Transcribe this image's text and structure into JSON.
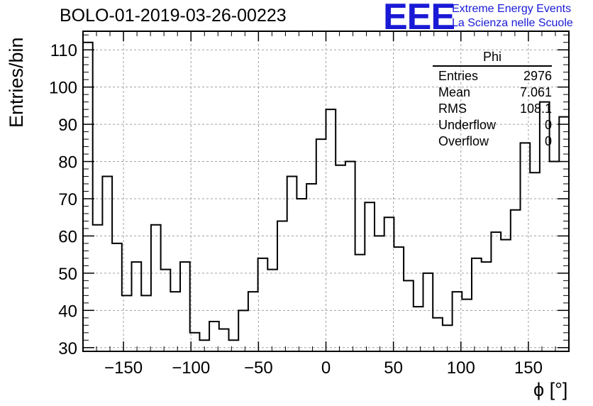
{
  "header": {
    "title": "BOLO-01-2019-03-26-00223",
    "logo_text": "EEE",
    "brand_line1": "Extreme Energy Events",
    "brand_line2": "La Scienza nelle Scuole"
  },
  "stats_box": {
    "name": "Phi",
    "rows": [
      {
        "label": "Entries",
        "value": "2976"
      },
      {
        "label": "Mean",
        "value": "7.061"
      },
      {
        "label": "RMS",
        "value": "108.1"
      },
      {
        "label": "Underflow",
        "value": "0"
      },
      {
        "label": "Overflow",
        "value": "0"
      }
    ]
  },
  "chart_data": {
    "type": "histogram",
    "title": "BOLO-01-2019-03-26-00223",
    "xlabel": "ϕ [°]",
    "ylabel": "Entries/bin",
    "xlim": [
      -180,
      180
    ],
    "ylim": [
      29,
      115
    ],
    "bin_width": 7.2,
    "bin_start": -180,
    "values": [
      112,
      63,
      76,
      58,
      44,
      53,
      44,
      63,
      51,
      45,
      53,
      34,
      32,
      37,
      35,
      32,
      40,
      45,
      54,
      51,
      64,
      76,
      70,
      74,
      86,
      94,
      79,
      80,
      55,
      69,
      60,
      65,
      57,
      48,
      41,
      50,
      38,
      36,
      45,
      43,
      54,
      53,
      61,
      59,
      67,
      85,
      77,
      96,
      80,
      92
    ],
    "xticks": [
      -150,
      -100,
      -50,
      0,
      50,
      100,
      150
    ],
    "xtick_labels": [
      "−150",
      "−100",
      "−50",
      "0",
      "50",
      "100",
      "150"
    ],
    "yticks": [
      30,
      40,
      50,
      60,
      70,
      80,
      90,
      100,
      110
    ],
    "ytick_labels": [
      "30",
      "40",
      "50",
      "60",
      "70",
      "80",
      "90",
      "100",
      "110"
    ],
    "grid": true,
    "line_color": "#000000",
    "grid_color": "#a0a0a0"
  }
}
